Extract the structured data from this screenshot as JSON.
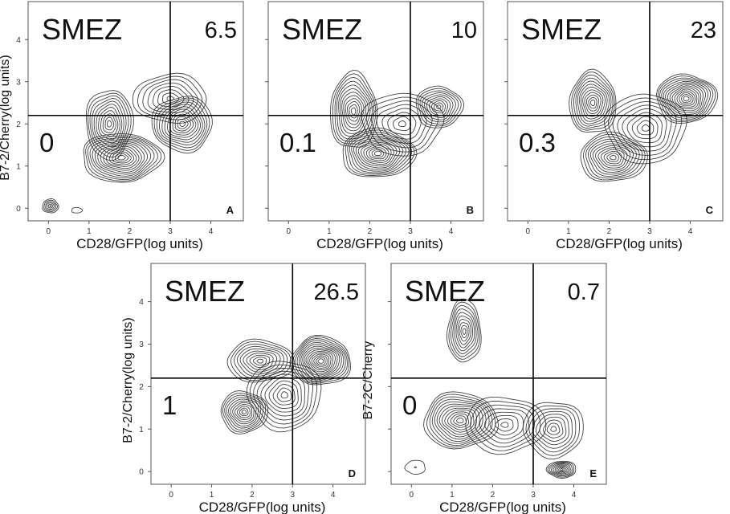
{
  "chart_data": [
    {
      "panel": "A",
      "type": "contour",
      "condition": "SMEZ",
      "xlabel": "CD28/GFP(log units)",
      "ylabel": "B7-2/Cherry(log units)",
      "x_ticks": [
        "0",
        "1",
        "2",
        "3",
        "4"
      ],
      "y_ticks": [
        "0",
        "1",
        "2",
        "3",
        "4"
      ],
      "xlim": [
        -0.5,
        4.8
      ],
      "ylim": [
        -0.3,
        4.9
      ],
      "gate": {
        "x": 3.0,
        "y": 2.2
      },
      "quadrant_values": {
        "upper_right": "6.5",
        "lower_left": "0"
      },
      "peaks": [
        {
          "x": 0.05,
          "y": 0.05,
          "w": 0.12,
          "h": 0.1,
          "h_rel": 0.9,
          "levels": 6
        },
        {
          "x": 0.7,
          "y": -0.05,
          "w": 0.08,
          "h": 0.04,
          "h_rel": 0.3,
          "levels": 1
        },
        {
          "x": 1.8,
          "y": 1.2,
          "w": 0.6,
          "h": 0.35,
          "h_rel": 1.0,
          "levels": 14
        },
        {
          "x": 1.5,
          "y": 2.0,
          "w": 0.35,
          "h": 0.5,
          "h_rel": 0.75,
          "levels": 11
        },
        {
          "x": 3.3,
          "y": 2.0,
          "w": 0.45,
          "h": 0.4,
          "h_rel": 0.75,
          "levels": 12
        },
        {
          "x": 3.0,
          "y": 2.6,
          "w": 0.55,
          "h": 0.35,
          "h_rel": 0.5,
          "levels": 8
        }
      ]
    },
    {
      "panel": "B",
      "type": "contour",
      "condition": "SMEZ",
      "xlabel": "CD28/GFP(log units)",
      "ylabel": "",
      "x_ticks": [
        "0",
        "1",
        "2",
        "3",
        "4"
      ],
      "y_ticks": [],
      "xlim": [
        -0.5,
        4.8
      ],
      "ylim": [
        -0.3,
        4.9
      ],
      "gate": {
        "x": 3.0,
        "y": 2.2
      },
      "quadrant_values": {
        "upper_right": "10",
        "lower_left": "0.1"
      },
      "peaks": [
        {
          "x": 1.6,
          "y": 2.3,
          "w": 0.35,
          "h": 0.55,
          "h_rel": 0.9,
          "levels": 12
        },
        {
          "x": 2.2,
          "y": 1.3,
          "w": 0.55,
          "h": 0.35,
          "h_rel": 1.0,
          "levels": 14
        },
        {
          "x": 3.7,
          "y": 2.4,
          "w": 0.35,
          "h": 0.3,
          "h_rel": 0.75,
          "levels": 10
        },
        {
          "x": 2.8,
          "y": 2.0,
          "w": 0.6,
          "h": 0.45,
          "h_rel": 0.5,
          "levels": 8
        }
      ]
    },
    {
      "panel": "C",
      "type": "contour",
      "condition": "SMEZ",
      "xlabel": "CD28/GFP(log units)",
      "ylabel": "",
      "x_ticks": [
        "0",
        "1",
        "2",
        "3",
        "4"
      ],
      "y_ticks": [],
      "xlim": [
        -0.5,
        4.8
      ],
      "ylim": [
        -0.3,
        4.9
      ],
      "gate": {
        "x": 3.0,
        "y": 2.2
      },
      "quadrant_values": {
        "upper_right": "23",
        "lower_left": "0.3"
      },
      "peaks": [
        {
          "x": 1.6,
          "y": 2.5,
          "w": 0.35,
          "h": 0.45,
          "h_rel": 0.9,
          "levels": 12
        },
        {
          "x": 2.1,
          "y": 1.2,
          "w": 0.5,
          "h": 0.35,
          "h_rel": 0.85,
          "levels": 12
        },
        {
          "x": 3.9,
          "y": 2.6,
          "w": 0.45,
          "h": 0.35,
          "h_rel": 1.0,
          "levels": 14
        },
        {
          "x": 2.9,
          "y": 1.9,
          "w": 0.6,
          "h": 0.5,
          "h_rel": 0.55,
          "levels": 9
        }
      ]
    },
    {
      "panel": "D",
      "type": "contour",
      "condition": "SMEZ",
      "xlabel": "CD28/GFP(log units)",
      "ylabel": "B7-2/Cherry(log units)",
      "x_ticks": [
        "0",
        "1",
        "2",
        "3",
        "4"
      ],
      "y_ticks": [
        "0",
        "1",
        "2",
        "3",
        "4"
      ],
      "xlim": [
        -0.5,
        4.8
      ],
      "ylim": [
        -0.3,
        4.9
      ],
      "gate": {
        "x": 3.0,
        "y": 2.2
      },
      "quadrant_values": {
        "upper_right": "26.5",
        "lower_left": "1"
      },
      "peaks": [
        {
          "x": 3.7,
          "y": 2.6,
          "w": 0.45,
          "h": 0.35,
          "h_rel": 1.0,
          "levels": 15
        },
        {
          "x": 2.2,
          "y": 2.6,
          "w": 0.5,
          "h": 0.3,
          "h_rel": 0.7,
          "levels": 10
        },
        {
          "x": 1.8,
          "y": 1.4,
          "w": 0.35,
          "h": 0.3,
          "h_rel": 0.75,
          "levels": 11
        },
        {
          "x": 2.8,
          "y": 1.8,
          "w": 0.55,
          "h": 0.5,
          "h_rel": 0.6,
          "levels": 10
        }
      ]
    },
    {
      "panel": "E",
      "type": "contour",
      "condition": "SMEZ",
      "xlabel": "CD28/GFP(log units)",
      "ylabel": "B7-2C/Cherry",
      "x_ticks": [
        "0",
        "1",
        "2",
        "3",
        "4"
      ],
      "y_ticks": [],
      "xlim": [
        -0.5,
        4.8
      ],
      "ylim": [
        -0.3,
        4.9
      ],
      "gate": {
        "x": 3.0,
        "y": 2.2
      },
      "quadrant_values": {
        "upper_right": "0.7",
        "lower_left": "0"
      },
      "peaks": [
        {
          "x": 1.3,
          "y": 3.3,
          "w": 0.25,
          "h": 0.45,
          "h_rel": 0.9,
          "levels": 10
        },
        {
          "x": 1.2,
          "y": 1.2,
          "w": 0.55,
          "h": 0.4,
          "h_rel": 1.0,
          "levels": 13
        },
        {
          "x": 2.3,
          "y": 1.1,
          "w": 0.6,
          "h": 0.4,
          "h_rel": 0.6,
          "levels": 8
        },
        {
          "x": 3.5,
          "y": 1.0,
          "w": 0.45,
          "h": 0.4,
          "h_rel": 0.65,
          "levels": 9
        },
        {
          "x": 3.7,
          "y": 0.05,
          "w": 0.22,
          "h": 0.12,
          "h_rel": 1.0,
          "levels": 9
        },
        {
          "x": 0.1,
          "y": 0.1,
          "w": 0.15,
          "h": 0.1,
          "h_rel": 0.4,
          "levels": 2
        }
      ]
    }
  ]
}
